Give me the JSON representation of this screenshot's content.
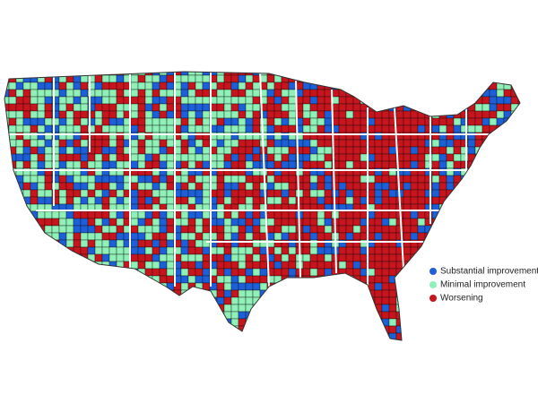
{
  "legend": {
    "items": [
      {
        "label": "Substantial improvement",
        "color": "#1c5fd8"
      },
      {
        "label": "Minimal improvement",
        "color": "#8ff0b8"
      },
      {
        "label": "Worsening",
        "color": "#c8141c"
      }
    ]
  }
}
